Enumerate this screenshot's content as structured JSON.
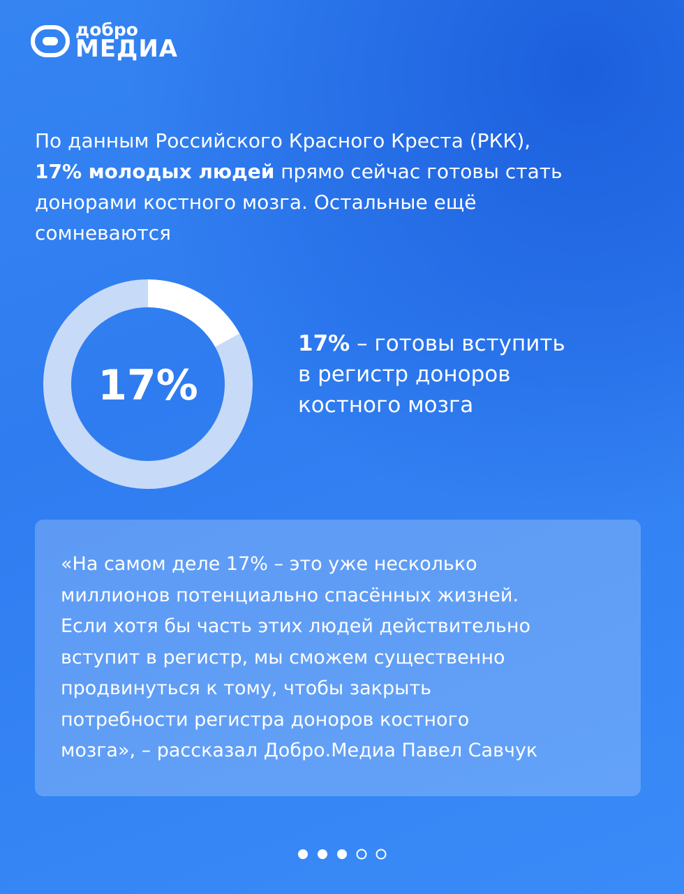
{
  "logo": {
    "top": "добро",
    "bottom": "МЕДИА"
  },
  "intro": {
    "lines": [
      [
        {
          "text": "По данным Российского Красного Креста (РКК),",
          "bold": false
        }
      ],
      [
        {
          "text": "17% молодых людей",
          "bold": true
        },
        {
          "text": " прямо сейчас готовы стать",
          "bold": false
        }
      ],
      [
        {
          "text": "донорами костного мозга. Остальные ещё",
          "bold": false
        }
      ],
      [
        {
          "text": "сомневаются",
          "bold": false
        }
      ]
    ]
  },
  "chart_data": {
    "type": "donut",
    "values": [
      17,
      83
    ],
    "colors": [
      "#ffffff",
      "#c7dbf8"
    ],
    "center_label": "17%",
    "legend": {
      "value_text": "17%",
      "lines": [
        "– готовы вступить",
        "в регистр доноров",
        "костного мозга"
      ]
    }
  },
  "quote": {
    "lines": [
      "«На самом деле 17% – это уже несколько",
      "миллионов потенциально спасённых жизней.",
      "Если хотя бы часть этих людей действительно",
      "вступит в регистр, мы сможем существенно",
      "продвинуться к тому, чтобы закрыть",
      "потребности регистра доноров костного",
      "мозга», – рассказал Добро.Медиа Павел Савчук"
    ]
  }
}
